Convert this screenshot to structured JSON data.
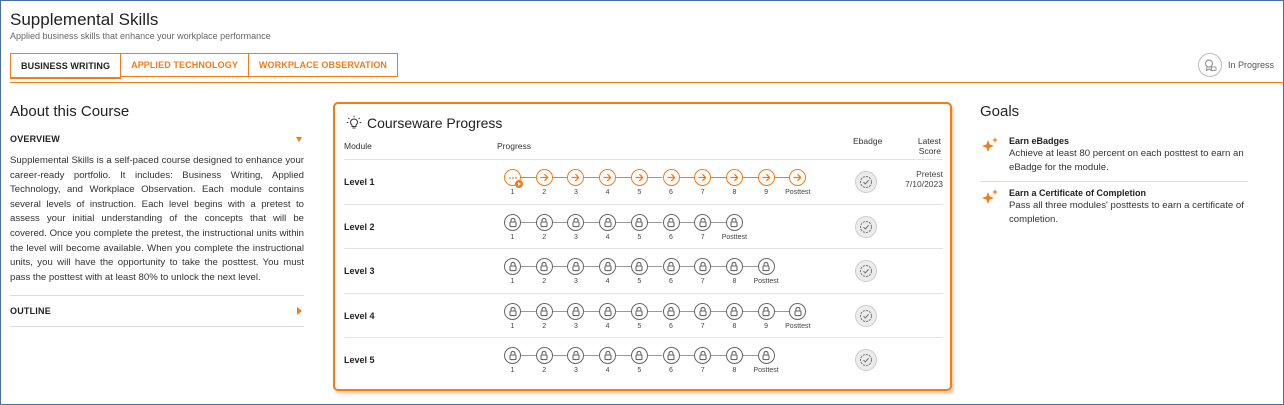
{
  "header": {
    "title": "Supplemental Skills",
    "subtitle": "Applied business skills that enhance your workplace performance",
    "status": "In Progress"
  },
  "tabs": [
    {
      "label": "BUSINESS WRITING",
      "active": true
    },
    {
      "label": "APPLIED TECHNOLOGY",
      "active": false
    },
    {
      "label": "WORKPLACE OBSERVATION",
      "active": false
    }
  ],
  "about": {
    "title": "About this Course",
    "overview_label": "OVERVIEW",
    "overview_text": "Supplemental Skills is a self-paced course designed to enhance your career-ready portfolio. It includes: Business Writing, Applied Technology, and Workplace Observation. Each module contains several levels of instruction. Each level begins with a pretest to assess your initial understanding of the concepts that will be covered. Once you complete the pretest, the instructional units within the level will become available. When you complete the instructional units, you will have the opportunity to take the posttest. You must pass the posttest with at least 80% to unlock the next level.",
    "outline_label": "OUTLINE"
  },
  "courseware": {
    "title": "Courseware Progress",
    "col_module": "Module",
    "col_progress": "Progress",
    "col_ebadge": "Ebadge",
    "col_score_line1": "Latest",
    "col_score_line2": "Score",
    "levels": [
      {
        "name": "Level 1",
        "steps": [
          "1",
          "2",
          "3",
          "4",
          "5",
          "6",
          "7",
          "8",
          "9",
          "Posttest"
        ],
        "state": "open",
        "score_line1": "Pretest",
        "score_line2": "7/10/2023"
      },
      {
        "name": "Level 2",
        "steps": [
          "1",
          "2",
          "3",
          "4",
          "5",
          "6",
          "7",
          "Posttest"
        ],
        "state": "locked",
        "score_line1": "",
        "score_line2": ""
      },
      {
        "name": "Level 3",
        "steps": [
          "1",
          "2",
          "3",
          "4",
          "5",
          "6",
          "7",
          "8",
          "Posttest"
        ],
        "state": "locked",
        "score_line1": "",
        "score_line2": ""
      },
      {
        "name": "Level 4",
        "steps": [
          "1",
          "2",
          "3",
          "4",
          "5",
          "6",
          "7",
          "8",
          "9",
          "Posttest"
        ],
        "state": "locked",
        "score_line1": "",
        "score_line2": ""
      },
      {
        "name": "Level 5",
        "steps": [
          "1",
          "2",
          "3",
          "4",
          "5",
          "6",
          "7",
          "8",
          "Posttest"
        ],
        "state": "locked",
        "score_line1": "",
        "score_line2": ""
      }
    ]
  },
  "goals": {
    "title": "Goals",
    "items": [
      {
        "title": "Earn eBadges",
        "desc": "Achieve at least 80 percent on each posttest to earn an eBadge for the module."
      },
      {
        "title": "Earn a Certificate of Completion",
        "desc": "Pass all three modules' posttests to earn a certificate of completion."
      }
    ]
  },
  "colors": {
    "accent": "#f07c1a",
    "locked": "#666666"
  }
}
